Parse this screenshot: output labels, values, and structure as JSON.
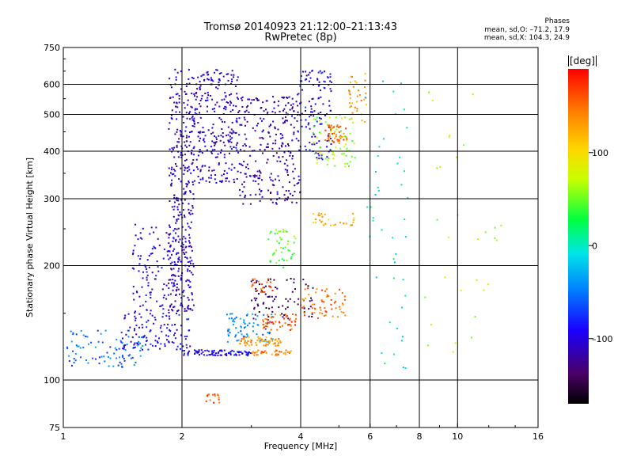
{
  "header": {
    "title": "Tromsø 20140923 21:12:00–21:13:43",
    "subtitle": "RwPretec (8p)",
    "phases_heading": "Phases",
    "phases_o": "mean, sd,O: –71.2, 17.9",
    "phases_x": "mean, sd,X: 104.3, 24.9"
  },
  "colors": {
    "axis": "#000000",
    "colormap": [
      "#000000",
      "#4a0066",
      "#1a00ff",
      "#0080ff",
      "#00e6e6",
      "#00ff40",
      "#c8ff00",
      "#ffd700",
      "#ff8000",
      "#ff0000"
    ]
  },
  "chart_data": {
    "type": "scatter",
    "title": "Tromsø 20140923 21:12:00–21:13:43",
    "subtitle": "RwPretec (8p)",
    "xlabel": "Frequency [MHz]",
    "ylabel": "Stationary phase Virtual Height [km]",
    "x_scale": "log",
    "y_scale": "log",
    "xlim": [
      1,
      16
    ],
    "ylim": [
      75,
      750
    ],
    "x_ticks": [
      1,
      2,
      4,
      6,
      8,
      10,
      16
    ],
    "x_tick_labels": [
      "1",
      "2",
      "4",
      "6",
      "8",
      "10",
      "16"
    ],
    "y_ticks": [
      75,
      100,
      200,
      300,
      400,
      500,
      600,
      750
    ],
    "y_tick_labels": [
      "75",
      "100",
      "200",
      "300",
      "400",
      "500",
      "600",
      "750"
    ],
    "x_gridlines": [
      2,
      4,
      6,
      8,
      10
    ],
    "y_gridlines": [
      100,
      200,
      300,
      400,
      500,
      600
    ],
    "colorbar": {
      "label": "[deg]",
      "range": [
        -170,
        190
      ],
      "ticks": [
        100,
        0,
        -100
      ],
      "tick_labels": [
        "100",
        "0",
        "–100"
      ]
    },
    "clusters": [
      {
        "x": [
          1.85,
          2.15
        ],
        "y": [
          150,
          660
        ],
        "c": -110,
        "n": 320
      },
      {
        "x": [
          2.15,
          2.8
        ],
        "y": [
          330,
          660
        ],
        "c": -105,
        "n": 260
      },
      {
        "x": [
          2.8,
          4.0
        ],
        "y": [
          290,
          560
        ],
        "c": -115,
        "n": 260
      },
      {
        "x": [
          3.9,
          4.8
        ],
        "y": [
          380,
          660
        ],
        "c": -95,
        "n": 120
      },
      {
        "x": [
          4.3,
          5.5
        ],
        "y": [
          360,
          500
        ],
        "c": 60,
        "n": 70
      },
      {
        "x": [
          4.6,
          5.3
        ],
        "y": [
          420,
          470
        ],
        "c": 150,
        "n": 45
      },
      {
        "x": [
          5.3,
          5.9
        ],
        "y": [
          470,
          640
        ],
        "c": 130,
        "n": 35
      },
      {
        "x": [
          1.0,
          1.6
        ],
        "y": [
          108,
          135
        ],
        "c": -55,
        "n": 90
      },
      {
        "x": [
          1.4,
          2.1
        ],
        "y": [
          120,
          150
        ],
        "c": -95,
        "n": 110
      },
      {
        "x": [
          1.5,
          2.1
        ],
        "y": [
          150,
          260
        ],
        "c": -100,
        "n": 150
      },
      {
        "x": [
          2.0,
          3.0
        ],
        "y": [
          116,
          120
        ],
        "c": -95,
        "n": 90
      },
      {
        "x": [
          2.6,
          3.4
        ],
        "y": [
          125,
          150
        ],
        "c": -45,
        "n": 70
      },
      {
        "x": [
          2.8,
          3.6
        ],
        "y": [
          123,
          130
        ],
        "c": 130,
        "n": 60
      },
      {
        "x": [
          3.2,
          3.9
        ],
        "y": [
          135,
          150
        ],
        "c": 160,
        "n": 50
      },
      {
        "x": [
          3.0,
          3.8
        ],
        "y": [
          116,
          120
        ],
        "c": 140,
        "n": 40
      },
      {
        "x": [
          3.0,
          4.3
        ],
        "y": [
          145,
          185
        ],
        "c": -140,
        "n": 80
      },
      {
        "x": [
          4.0,
          5.2
        ],
        "y": [
          145,
          175
        ],
        "c": 150,
        "n": 60
      },
      {
        "x": [
          3.3,
          3.9
        ],
        "y": [
          195,
          250
        ],
        "c": 40,
        "n": 45
      },
      {
        "x": [
          3.0,
          3.4
        ],
        "y": [
          170,
          185
        ],
        "c": 160,
        "n": 20
      },
      {
        "x": [
          2.3,
          2.5
        ],
        "y": [
          87,
          92
        ],
        "c": 160,
        "n": 14
      },
      {
        "x": [
          4.3,
          5.5
        ],
        "y": [
          255,
          275
        ],
        "c": 120,
        "n": 30
      },
      {
        "x": [
          5.8,
          7.5
        ],
        "y": [
          105,
          650
        ],
        "c": 0,
        "n": 45
      },
      {
        "x": [
          8.0,
          13.0
        ],
        "y": [
          95,
          620
        ],
        "c": 70,
        "n": 30
      }
    ]
  }
}
